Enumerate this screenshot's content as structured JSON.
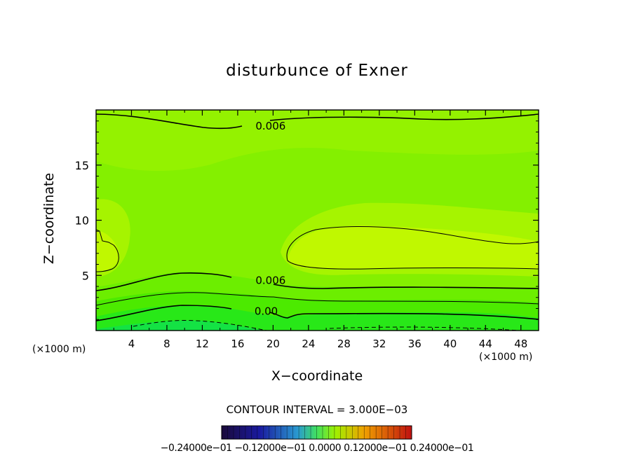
{
  "chart_data": {
    "type": "contour",
    "title": "disturbunce of Exner",
    "xlabel": "X−coordinate",
    "ylabel": "Z−coordinate",
    "x_unit_left": "(×1000 m)",
    "x_unit_right": "(×1000 m)",
    "x_ticks": [
      "4",
      "8",
      "12",
      "16",
      "20",
      "24",
      "28",
      "32",
      "36",
      "40",
      "44",
      "48"
    ],
    "x_tick_values": [
      4,
      8,
      12,
      16,
      20,
      24,
      28,
      32,
      36,
      40,
      44,
      48
    ],
    "y_ticks": [
      "5",
      "10",
      "15"
    ],
    "y_tick_values": [
      5,
      10,
      15
    ],
    "xlim": [
      0,
      50
    ],
    "ylim": [
      0,
      20
    ],
    "contour_interval_text": "CONTOUR INTERVAL = 3.000E−03",
    "contour_labels": [
      {
        "text": "0.006",
        "x": 17.5,
        "z": 18.6
      },
      {
        "text": "0.006",
        "x": 17.5,
        "z": 4.6
      },
      {
        "text": "0.00",
        "x": 17.0,
        "z": 1.8
      }
    ],
    "colorbar_labels": "−0.24000e−01 −0.12000e−01 0.0000 0.12000e−01 0.24000e−01",
    "colors": {
      "base": "#84f000",
      "upper_mid": "#a0f400",
      "bright_band": "#c4f800",
      "near_surface_1": "#5cec00",
      "near_surface_2": "#38e800",
      "near_surface_3": "#18e830",
      "surface": "#10e060"
    }
  }
}
